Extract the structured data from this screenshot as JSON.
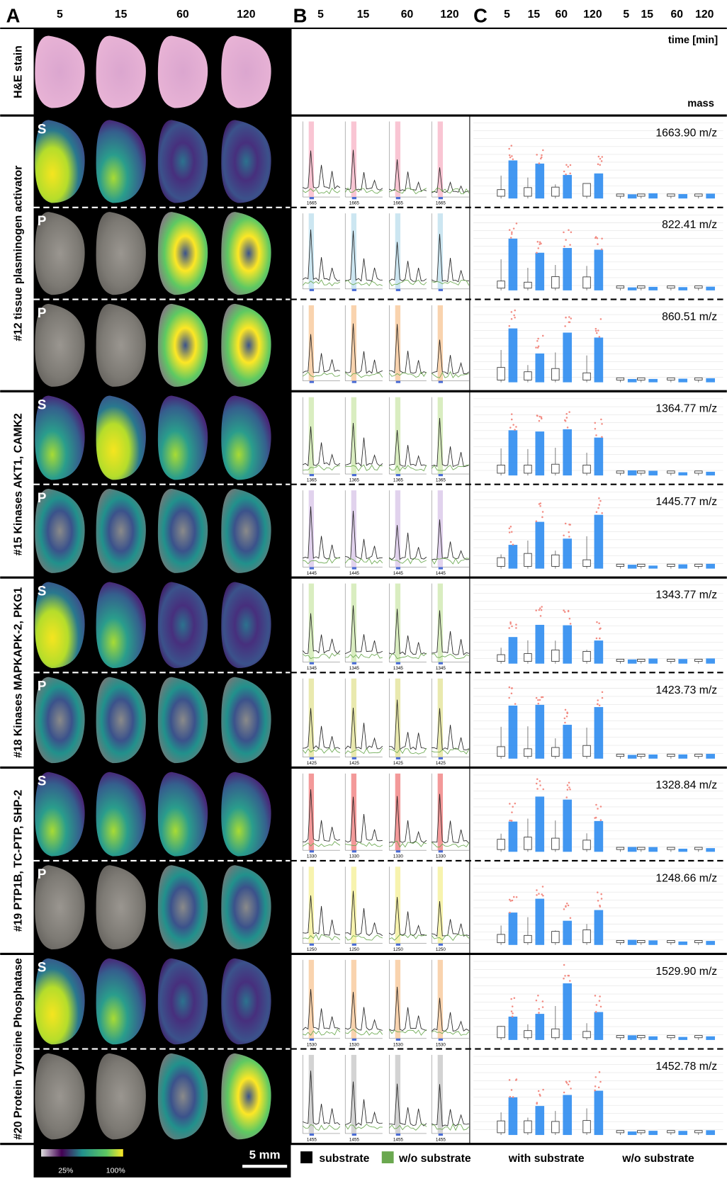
{
  "panels": {
    "a": "A",
    "b": "B",
    "c": "C"
  },
  "times": [
    "5",
    "15",
    "60",
    "120"
  ],
  "time_unit": "time [min]",
  "mass_header": "mass",
  "rows": [
    {
      "label": "H&E stain",
      "subrows": []
    },
    {
      "label": "#12 tissue plasminogen activator",
      "subrows": [
        {
          "tag": "S",
          "mass": "1663.90 m/z",
          "peak": "1665"
        },
        {
          "tag": "P",
          "mass": "822.41 m/z"
        },
        {
          "tag": "P",
          "mass": "860.51 m/z"
        }
      ]
    },
    {
      "label": "#15 Kinases AKT1, CAMK2",
      "subrows": [
        {
          "tag": "S",
          "mass": "1364.77 m/z",
          "peak": "1365"
        },
        {
          "tag": "P",
          "mass": "1445.77 m/z",
          "peak": "1445"
        }
      ]
    },
    {
      "label": "#18 Kinases MAPKAPK-2, PKG1",
      "subrows": [
        {
          "tag": "S",
          "mass": "1343.77 m/z",
          "peak": "1345"
        },
        {
          "tag": "P",
          "mass": "1423.73 m/z",
          "peak": "1425"
        }
      ]
    },
    {
      "label": "#19 PTP1B, TC-PTP, SHP-2",
      "subrows": [
        {
          "tag": "S",
          "mass": "1328.84 m/z",
          "peak": "1330"
        },
        {
          "tag": "P",
          "mass": "1248.66 m/z",
          "peak": "1250"
        }
      ]
    },
    {
      "label": "#20 Protein Tyrosine Phosphatase",
      "subrows": [
        {
          "tag": "S",
          "mass": "1529.90 m/z",
          "peak": "1530"
        },
        {
          "mass": "1452.78 m/z",
          "peak": "1455"
        }
      ]
    }
  ],
  "legend": {
    "substrate": "substrate",
    "without": "w/o substrate",
    "with_group": "with substrate",
    "without_group": "w/o substrate",
    "scale": "5 mm",
    "cbar_low": "25%",
    "cbar_high": "100%"
  }
}
